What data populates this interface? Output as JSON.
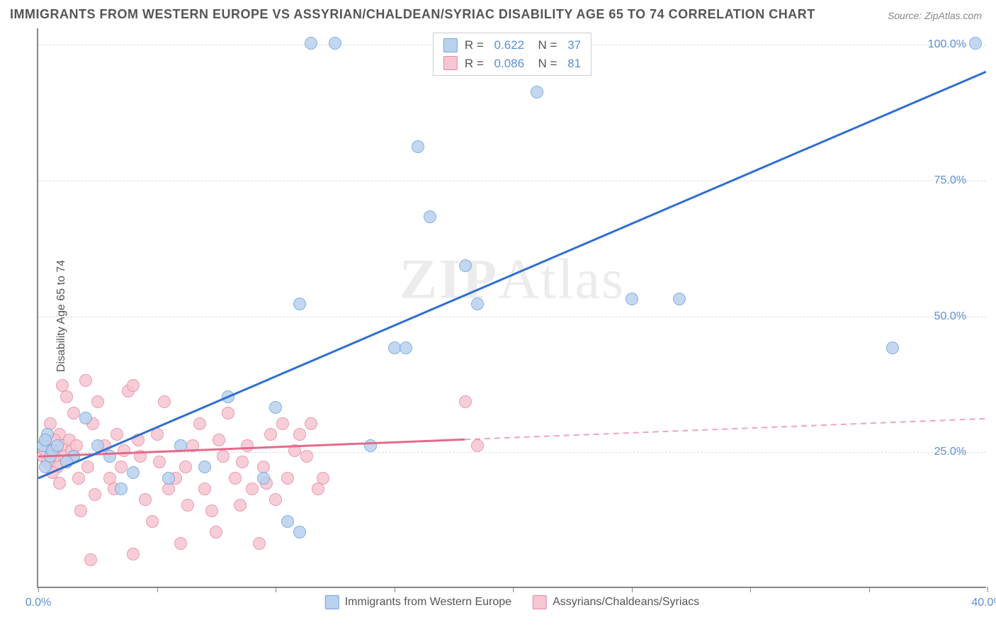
{
  "title": "IMMIGRANTS FROM WESTERN EUROPE VS ASSYRIAN/CHALDEAN/SYRIAC DISABILITY AGE 65 TO 74 CORRELATION CHART",
  "source": "Source: ZipAtlas.com",
  "ylabel": "Disability Age 65 to 74",
  "watermark_a": "ZIP",
  "watermark_b": "Atlas",
  "chart": {
    "type": "scatter-with-regression",
    "xlim": [
      0,
      40
    ],
    "ylim": [
      0,
      103
    ],
    "xticks": [
      0,
      5,
      10,
      15,
      20,
      25,
      30,
      35,
      40
    ],
    "xtick_labels": {
      "0": "0.0%",
      "40": "40.0%"
    },
    "yticks": [
      25,
      50,
      75,
      100
    ],
    "ytick_labels": [
      "25.0%",
      "50.0%",
      "75.0%",
      "100.0%"
    ],
    "grid_color": "#dddddd",
    "axis_color": "#888888",
    "background": "#ffffff"
  },
  "series": {
    "blue": {
      "label": "Immigrants from Western Europe",
      "R": "0.622",
      "N": "37",
      "fill": "#b9d2ee",
      "stroke": "#6fa3dc",
      "line_color": "#2f6fd0",
      "marker_radius": 9,
      "reg_line": {
        "x1": 0,
        "y1": 20,
        "x2": 40,
        "y2": 95,
        "solid_until_x": 40
      },
      "points": [
        [
          0.2,
          26
        ],
        [
          0.3,
          22
        ],
        [
          0.5,
          24
        ],
        [
          0.4,
          28
        ],
        [
          0.6,
          25
        ],
        [
          0.3,
          27
        ],
        [
          3.0,
          24
        ],
        [
          2.5,
          26
        ],
        [
          8.0,
          35
        ],
        [
          7.0,
          22
        ],
        [
          9.5,
          20
        ],
        [
          10.0,
          33
        ],
        [
          11.0,
          52
        ],
        [
          11.5,
          100
        ],
        [
          12.5,
          100
        ],
        [
          10.5,
          12
        ],
        [
          11.0,
          10
        ],
        [
          15.0,
          44
        ],
        [
          15.5,
          44
        ],
        [
          16.0,
          81
        ],
        [
          16.5,
          68
        ],
        [
          14.0,
          26
        ],
        [
          18.0,
          59
        ],
        [
          18.5,
          52
        ],
        [
          21.0,
          91
        ],
        [
          25.0,
          53
        ],
        [
          27.0,
          53
        ],
        [
          36.0,
          44
        ],
        [
          39.5,
          100
        ],
        [
          6.0,
          26
        ],
        [
          4.0,
          21
        ],
        [
          2.0,
          31
        ],
        [
          3.5,
          18
        ],
        [
          1.5,
          24
        ],
        [
          0.8,
          26
        ],
        [
          1.2,
          23
        ],
        [
          5.5,
          20
        ]
      ]
    },
    "pink": {
      "label": "Assyrians/Chaldeans/Syriacs",
      "R": "0.086",
      "N": "81",
      "fill": "#f6c6d2",
      "stroke": "#e88aa2",
      "line_color": "#e46a8a",
      "marker_radius": 9,
      "reg_line": {
        "x1": 0,
        "y1": 24,
        "x2": 40,
        "y2": 31,
        "solid_until_x": 18
      },
      "points": [
        [
          0.2,
          24
        ],
        [
          0.3,
          27
        ],
        [
          0.5,
          23
        ],
        [
          0.4,
          26
        ],
        [
          0.6,
          25
        ],
        [
          0.7,
          24
        ],
        [
          0.3,
          25
        ],
        [
          0.8,
          22
        ],
        [
          0.9,
          28
        ],
        [
          1.0,
          26
        ],
        [
          1.1,
          24
        ],
        [
          1.2,
          23
        ],
        [
          1.3,
          27
        ],
        [
          1.4,
          25
        ],
        [
          1.5,
          24
        ],
        [
          0.5,
          30
        ],
        [
          0.6,
          21
        ],
        [
          0.4,
          23
        ],
        [
          0.7,
          27
        ],
        [
          1.0,
          37
        ],
        [
          1.2,
          35
        ],
        [
          1.5,
          32
        ],
        [
          2.0,
          38
        ],
        [
          2.3,
          30
        ],
        [
          2.5,
          34
        ],
        [
          3.0,
          20
        ],
        [
          3.2,
          18
        ],
        [
          3.5,
          22
        ],
        [
          3.8,
          36
        ],
        [
          4.0,
          37
        ],
        [
          4.3,
          24
        ],
        [
          4.5,
          16
        ],
        [
          4.8,
          12
        ],
        [
          5.0,
          28
        ],
        [
          5.3,
          34
        ],
        [
          5.5,
          18
        ],
        [
          5.8,
          20
        ],
        [
          6.0,
          8
        ],
        [
          6.3,
          15
        ],
        [
          6.5,
          26
        ],
        [
          6.8,
          30
        ],
        [
          7.0,
          18
        ],
        [
          7.3,
          14
        ],
        [
          7.5,
          10
        ],
        [
          7.8,
          24
        ],
        [
          8.0,
          32
        ],
        [
          8.3,
          20
        ],
        [
          8.5,
          15
        ],
        [
          8.8,
          26
        ],
        [
          9.0,
          18
        ],
        [
          9.3,
          8
        ],
        [
          9.5,
          22
        ],
        [
          9.8,
          28
        ],
        [
          10.0,
          16
        ],
        [
          10.3,
          30
        ],
        [
          10.5,
          20
        ],
        [
          11.0,
          28
        ],
        [
          11.3,
          24
        ],
        [
          11.5,
          30
        ],
        [
          12.0,
          20
        ],
        [
          18.0,
          34
        ],
        [
          18.5,
          26
        ],
        [
          2.2,
          5
        ],
        [
          4.0,
          6
        ],
        [
          1.8,
          14
        ],
        [
          2.8,
          26
        ],
        [
          3.3,
          28
        ],
        [
          1.6,
          26
        ],
        [
          2.1,
          22
        ],
        [
          0.9,
          19
        ],
        [
          1.7,
          20
        ],
        [
          2.4,
          17
        ],
        [
          3.6,
          25
        ],
        [
          4.2,
          27
        ],
        [
          5.1,
          23
        ],
        [
          6.2,
          22
        ],
        [
          7.6,
          27
        ],
        [
          8.6,
          23
        ],
        [
          9.6,
          19
        ],
        [
          10.8,
          25
        ],
        [
          11.8,
          18
        ]
      ]
    }
  }
}
